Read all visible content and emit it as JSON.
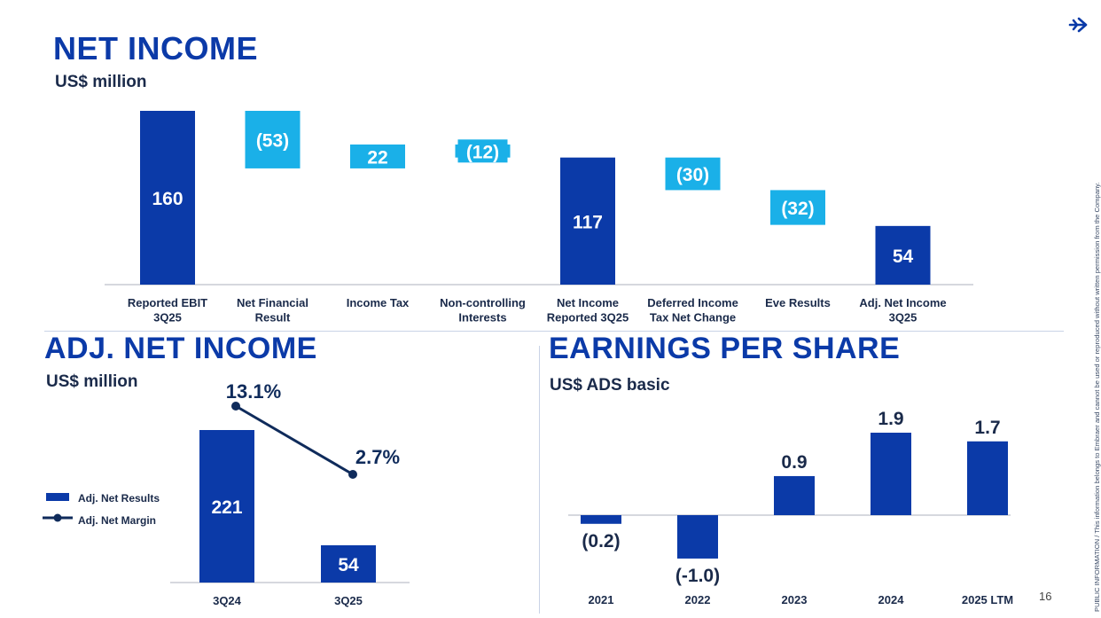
{
  "page": {
    "page_number": "16",
    "side_note": "PUBLIC INFORMATION / This information belongs to Embraer and cannot be used or reproduced without written permission from the Company.",
    "logo_icon": "embraer-arrow-icon"
  },
  "colors": {
    "dark": "#0b3aa8",
    "light": "#1ab0e8",
    "line": "#0f2b5b",
    "text": "#1a2a4a"
  },
  "chart_data": [
    {
      "type": "bar",
      "subtype": "waterfall",
      "title": "NET INCOME",
      "subtitle": "US$ million",
      "categories": [
        "Reported EBIT\n3Q25",
        "Net Financial\nResult",
        "Income Tax",
        "Non-controlling\nInterests",
        "Net Income\nReported 3Q25",
        "Deferred Income\nTax Net Change",
        "Eve Results",
        "Adj. Net Income\n3Q25"
      ],
      "values": [
        160,
        -53,
        22,
        -12,
        117,
        -30,
        -32,
        54
      ],
      "labels": [
        "160",
        "(53)",
        "22",
        "(12)",
        "117",
        "(30)",
        "(32)",
        "54"
      ],
      "kinds": [
        "total",
        "delta",
        "delta",
        "delta",
        "total",
        "delta",
        "delta",
        "total"
      ]
    },
    {
      "type": "bar",
      "subtype": "bar-with-line",
      "title": "ADJ. NET INCOME",
      "subtitle": "US$ million",
      "categories": [
        "3Q24",
        "3Q25"
      ],
      "series": [
        {
          "name": "Adj. Net Results",
          "values": [
            221,
            54
          ],
          "labels": [
            "221",
            "54"
          ]
        },
        {
          "name": "Adj. Net Margin",
          "values": [
            13.1,
            2.7
          ],
          "labels": [
            "13.1%",
            "2.7%"
          ]
        }
      ],
      "legend": "left"
    },
    {
      "type": "bar",
      "title": "EARNINGS PER SHARE",
      "subtitle": "US$ ADS basic",
      "categories": [
        "2021",
        "2022",
        "2023",
        "2024",
        "2025 LTM"
      ],
      "values": [
        -0.2,
        -1.0,
        0.9,
        1.9,
        1.7
      ],
      "labels": [
        "(0.2)",
        "(-1.0)",
        "0.9",
        "1.9",
        "1.7"
      ]
    }
  ]
}
